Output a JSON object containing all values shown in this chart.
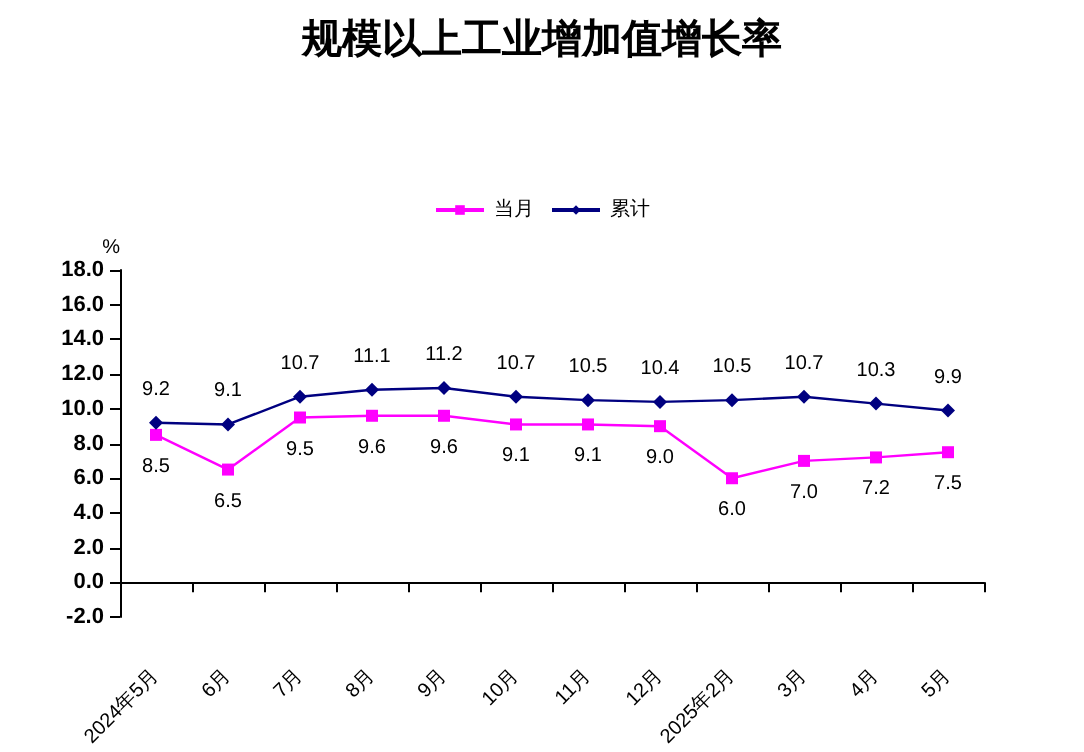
{
  "chart_data": {
    "type": "line",
    "title": "规模以上工业增加值增长率",
    "ylabel": "%",
    "categories": [
      "2024年5月",
      "6月",
      "7月",
      "8月",
      "9月",
      "10月",
      "11月",
      "12月",
      "2025年2月",
      "3月",
      "4月",
      "5月"
    ],
    "series": [
      {
        "name": "当月",
        "color": "#ff00ff",
        "marker": "square",
        "values": [
          8.5,
          6.5,
          9.5,
          9.6,
          9.6,
          9.1,
          9.1,
          9.0,
          6.0,
          7.0,
          7.2,
          7.5
        ],
        "value_labels": [
          "8.5",
          "6.5",
          "9.5",
          "9.6",
          "9.6",
          "9.1",
          "9.1",
          "9.0",
          "6.0",
          "7.0",
          "7.2",
          "7.5"
        ]
      },
      {
        "name": "累计",
        "color": "#000080",
        "marker": "diamond",
        "values": [
          9.2,
          9.1,
          10.7,
          11.1,
          11.2,
          10.7,
          10.5,
          10.4,
          10.5,
          10.7,
          10.3,
          9.9
        ],
        "value_labels": [
          "9.2",
          "9.1",
          "10.7",
          "11.1",
          "11.2",
          "10.7",
          "10.5",
          "10.4",
          "10.5",
          "10.7",
          "10.3",
          "9.9"
        ]
      }
    ],
    "ylim": [
      -2,
      18
    ],
    "yticks": [
      {
        "value": -2,
        "label": "-2.0"
      },
      {
        "value": 0,
        "label": "0.0"
      },
      {
        "value": 2,
        "label": "2.0"
      },
      {
        "value": 4,
        "label": "4.0"
      },
      {
        "value": 6,
        "label": "6.0"
      },
      {
        "value": 8,
        "label": "8.0"
      },
      {
        "value": 10,
        "label": "10.0"
      },
      {
        "value": 12,
        "label": "12.0"
      },
      {
        "value": 14,
        "label": "14.0"
      },
      {
        "value": 16,
        "label": "16.0"
      },
      {
        "value": 18,
        "label": "18.0"
      }
    ],
    "legend": "top",
    "line_style": "solid"
  }
}
